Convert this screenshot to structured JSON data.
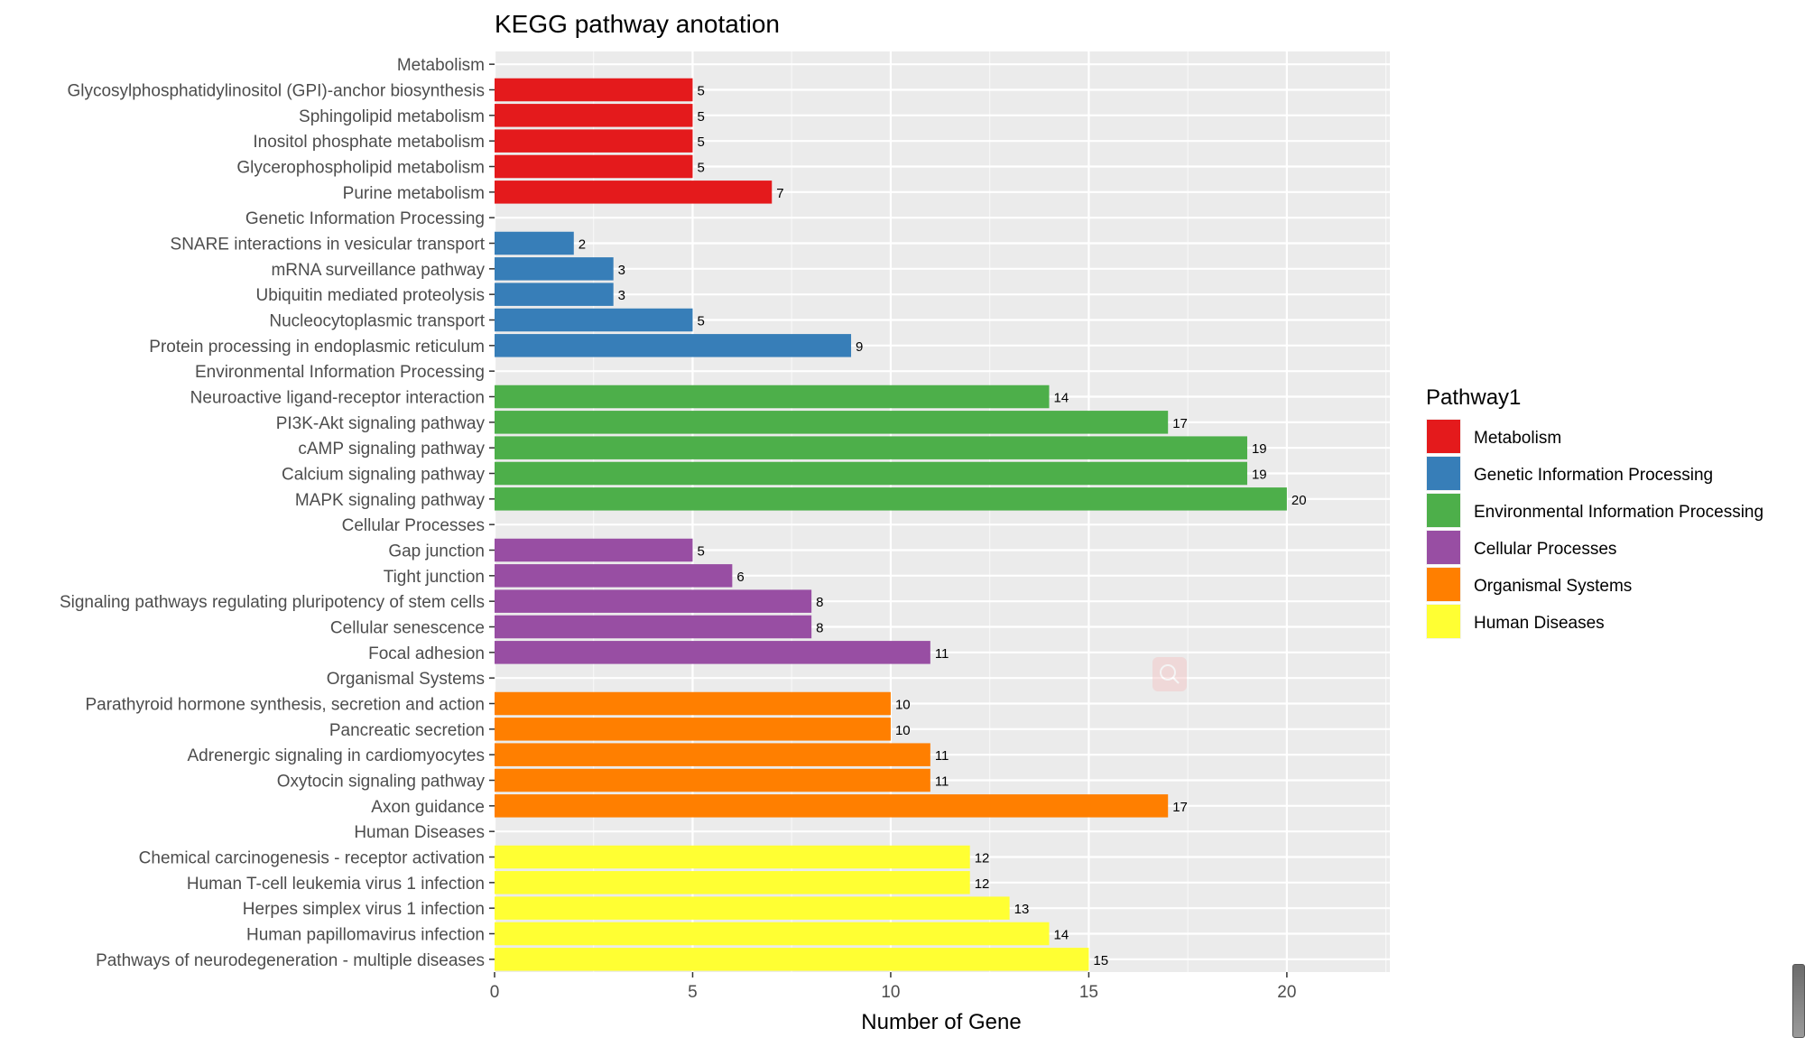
{
  "chart_data": {
    "type": "bar",
    "orientation": "horizontal",
    "title": "KEGG pathway anotation",
    "xlabel": "Number of Gene",
    "ylabel": "",
    "xlim": [
      0,
      22.6
    ],
    "xticks": [
      0,
      5,
      10,
      15,
      20
    ],
    "grid": true,
    "legend": {
      "title": "Pathway1",
      "position": "right",
      "entries": [
        {
          "name": "Metabolism",
          "color": "#E41A1C"
        },
        {
          "name": "Genetic Information Processing",
          "color": "#377EB8"
        },
        {
          "name": "Environmental Information Processing",
          "color": "#4DAF4A"
        },
        {
          "name": "Cellular Processes",
          "color": "#984EA3"
        },
        {
          "name": "Organismal Systems",
          "color": "#FF7F00"
        },
        {
          "name": "Human Diseases",
          "color": "#FFFF33"
        }
      ]
    },
    "rows": [
      {
        "label": "Metabolism",
        "value": null,
        "group": 0
      },
      {
        "label": "Glycosylphosphatidylinositol (GPI)-anchor biosynthesis",
        "value": 5,
        "group": 0
      },
      {
        "label": "Sphingolipid metabolism",
        "value": 5,
        "group": 0
      },
      {
        "label": "Inositol phosphate metabolism",
        "value": 5,
        "group": 0
      },
      {
        "label": "Glycerophospholipid metabolism",
        "value": 5,
        "group": 0
      },
      {
        "label": "Purine metabolism",
        "value": 7,
        "group": 0
      },
      {
        "label": "Genetic Information Processing",
        "value": null,
        "group": 1
      },
      {
        "label": "SNARE interactions in vesicular transport",
        "value": 2,
        "group": 1
      },
      {
        "label": "mRNA surveillance pathway",
        "value": 3,
        "group": 1
      },
      {
        "label": "Ubiquitin mediated proteolysis",
        "value": 3,
        "group": 1
      },
      {
        "label": "Nucleocytoplasmic transport",
        "value": 5,
        "group": 1
      },
      {
        "label": "Protein processing in endoplasmic reticulum",
        "value": 9,
        "group": 1
      },
      {
        "label": "Environmental Information Processing",
        "value": null,
        "group": 2
      },
      {
        "label": "Neuroactive ligand-receptor interaction",
        "value": 14,
        "group": 2
      },
      {
        "label": "PI3K-Akt signaling pathway",
        "value": 17,
        "group": 2
      },
      {
        "label": "cAMP signaling pathway",
        "value": 19,
        "group": 2
      },
      {
        "label": "Calcium signaling pathway",
        "value": 19,
        "group": 2
      },
      {
        "label": "MAPK signaling pathway",
        "value": 20,
        "group": 2
      },
      {
        "label": "Cellular Processes",
        "value": null,
        "group": 3
      },
      {
        "label": "Gap junction",
        "value": 5,
        "group": 3
      },
      {
        "label": "Tight junction",
        "value": 6,
        "group": 3
      },
      {
        "label": "Signaling pathways regulating pluripotency of stem cells",
        "value": 8,
        "group": 3
      },
      {
        "label": "Cellular senescence",
        "value": 8,
        "group": 3
      },
      {
        "label": "Focal adhesion",
        "value": 11,
        "group": 3
      },
      {
        "label": "Organismal Systems",
        "value": null,
        "group": 4
      },
      {
        "label": "Parathyroid hormone synthesis, secretion and action",
        "value": 10,
        "group": 4
      },
      {
        "label": "Pancreatic secretion",
        "value": 10,
        "group": 4
      },
      {
        "label": "Adrenergic signaling in cardiomyocytes",
        "value": 11,
        "group": 4
      },
      {
        "label": "Oxytocin signaling pathway",
        "value": 11,
        "group": 4
      },
      {
        "label": "Axon guidance",
        "value": 17,
        "group": 4
      },
      {
        "label": "Human Diseases",
        "value": null,
        "group": 5
      },
      {
        "label": "Chemical carcinogenesis - receptor activation",
        "value": 12,
        "group": 5
      },
      {
        "label": "Human T-cell leukemia virus 1 infection",
        "value": 12,
        "group": 5
      },
      {
        "label": "Herpes simplex virus 1 infection",
        "value": 13,
        "group": 5
      },
      {
        "label": "Human papillomavirus infection",
        "value": 14,
        "group": 5
      },
      {
        "label": "Pathways of neurodegeneration - multiple diseases",
        "value": 15,
        "group": 5
      }
    ]
  }
}
